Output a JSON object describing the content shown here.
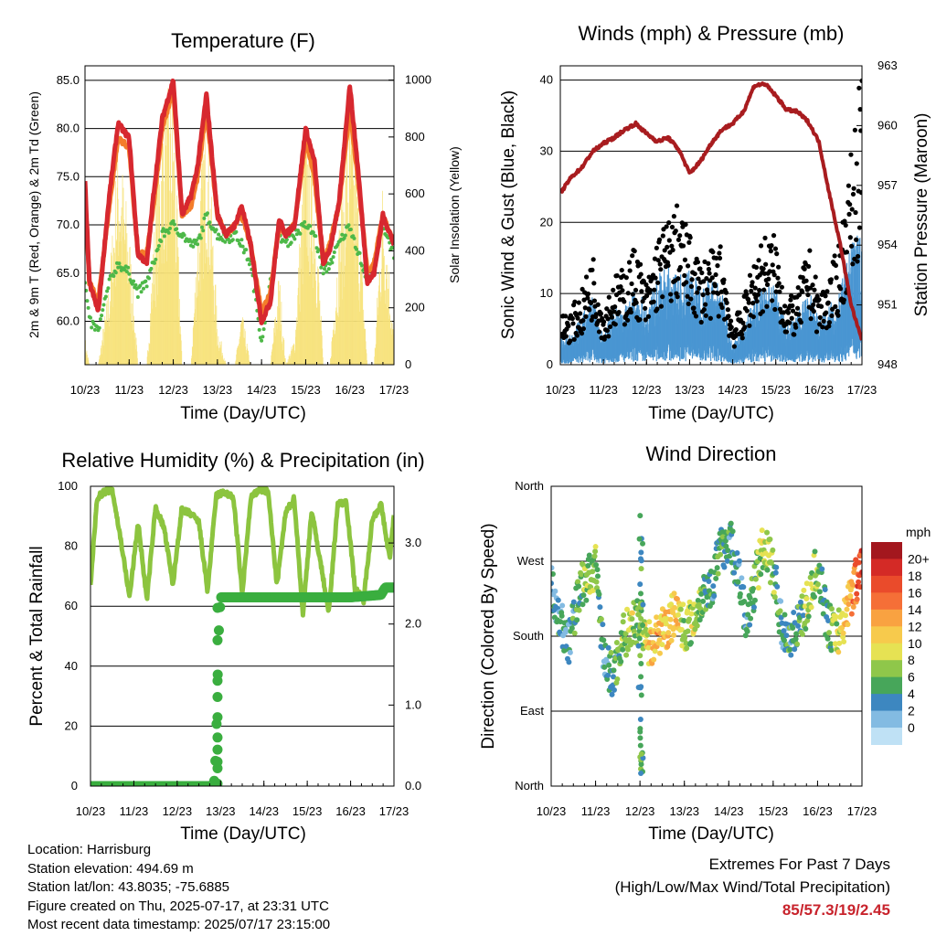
{
  "panels": {
    "temperature": {
      "title": "Temperature (F)",
      "ylabel_left": "2m & 9m T (Red, Orange) & 2m Td (Green)",
      "ylabel_right": "Solar Insolation (Yellow)",
      "xlabel": "Time (Day/UTC)"
    },
    "winds": {
      "title": "Winds (mph) & Pressure (mb)",
      "ylabel_left": "Sonic Wind & Gust (Blue, Black)",
      "ylabel_right": "Station Pressure (Maroon)",
      "xlabel": "Time (Day/UTC)"
    },
    "humidity": {
      "title": "Relative Humidity (%) & Precipitation (in)",
      "ylabel_left": "Percent & Total Rainfall",
      "xlabel": "Time (Day/UTC)"
    },
    "direction": {
      "title": "Wind Direction",
      "ylabel_left": "Direction (Colored By Speed)",
      "xlabel": "Time (Day/UTC)",
      "colorbar_title": "mph",
      "colorbar_labels": [
        "20+",
        "18",
        "16",
        "14",
        "12",
        "10",
        "8",
        "6",
        "4",
        "2",
        "0"
      ],
      "colorbar_colors": [
        "#a3171e",
        "#d42a26",
        "#ea4b2b",
        "#f56f37",
        "#f9a241",
        "#f7ca4c",
        "#e6e253",
        "#8fc74a",
        "#47a65a",
        "#3d87c0",
        "#83bbe2",
        "#bfe1f5"
      ]
    }
  },
  "info": {
    "location": "Location: Harrisburg",
    "elevation": "Station elevation: 494.69 m",
    "latlon": "Station lat/lon: 43.8035; -75.6885",
    "created": "Figure created on Thu, 2025-07-17, at 23:31 UTC",
    "recent": "Most recent data timestamp: 2025/07/17 23:15:00"
  },
  "extremes": {
    "title": "Extremes For Past 7 Days",
    "subtitle": "(High/Low/Max Wind/Total Precipitation)",
    "values": "85/57.3/19/2.45"
  },
  "chart_data": [
    {
      "type": "line",
      "title": "Temperature (F)",
      "xlabel": "Time (Day/UTC)",
      "ylabel": "2m & 9m T (Red, Orange) & 2m Td (Green)",
      "y2label": "Solar Insolation (Yellow)",
      "x_ticks": [
        "10/23",
        "11/23",
        "12/23",
        "13/23",
        "14/23",
        "15/23",
        "16/23",
        "17/23"
      ],
      "ylim": [
        55.5,
        86.5
      ],
      "y_ticks": [
        "60.0",
        "65.0",
        "70.0",
        "75.0",
        "80.0",
        "85.0"
      ],
      "y2lim": [
        0,
        1050
      ],
      "y2_ticks": [
        "0",
        "200",
        "400",
        "600",
        "800",
        "1000"
      ],
      "colors": {
        "temp2m": "#d7282f",
        "temp9m": "#f47d2a",
        "dewpoint": "#4db848",
        "solar": "#f7e27a"
      },
      "x": [
        10.0,
        10.1,
        10.3,
        10.55,
        10.75,
        11.0,
        11.2,
        11.4,
        11.55,
        11.75,
        12.0,
        12.2,
        12.4,
        12.55,
        12.75,
        13.0,
        13.2,
        13.4,
        13.55,
        13.75,
        14.0,
        14.2,
        14.4,
        14.55,
        14.75,
        15.0,
        15.2,
        15.4,
        15.55,
        15.75,
        16.0,
        16.2,
        16.4,
        16.55,
        16.75,
        17.0
      ],
      "series": [
        {
          "name": "temp2m",
          "values": [
            74.5,
            64,
            61,
            73,
            80.5,
            79,
            67,
            66,
            73,
            81,
            85,
            71,
            73,
            76,
            83.5,
            71,
            69,
            70,
            72,
            68,
            60,
            62,
            70.5,
            69,
            70,
            80,
            76.5,
            66,
            67.5,
            72,
            84.5,
            75,
            64,
            65,
            71,
            68
          ]
        },
        {
          "name": "temp9m",
          "values": [
            73,
            64,
            62,
            72,
            79,
            78,
            67,
            67,
            72,
            80,
            84,
            71,
            72,
            75,
            82,
            71,
            69,
            70,
            71,
            68,
            61,
            63,
            70,
            69,
            70,
            79,
            75,
            66,
            68,
            72,
            82,
            74,
            65,
            66,
            71,
            68
          ]
        },
        {
          "name": "dewpoint",
          "values": [
            64,
            60,
            59,
            64,
            66,
            65,
            63,
            64,
            66,
            69,
            70,
            69,
            68,
            68,
            71,
            69,
            68.5,
            69,
            68,
            66,
            58,
            64,
            69,
            68,
            69,
            70,
            69,
            65,
            66,
            68,
            70,
            67,
            64,
            66,
            70,
            67
          ]
        },
        {
          "name": "solar",
          "values": [
            100,
            0,
            0,
            300,
            850,
            500,
            0,
            0,
            450,
            950,
            1000,
            0,
            0,
            500,
            1000,
            150,
            0,
            0,
            200,
            0,
            0,
            0,
            350,
            0,
            100,
            900,
            700,
            0,
            0,
            500,
            950,
            600,
            0,
            0,
            700,
            100
          ]
        }
      ]
    },
    {
      "type": "scatter",
      "title": "Winds (mph) & Pressure (mb)",
      "xlabel": "Time (Day/UTC)",
      "ylabel": "Sonic Wind & Gust (Blue, Black)",
      "y2label": "Station Pressure (Maroon)",
      "x_ticks": [
        "10/23",
        "11/23",
        "12/23",
        "13/23",
        "14/23",
        "15/23",
        "16/23",
        "17/23"
      ],
      "ylim": [
        0,
        42
      ],
      "y_ticks": [
        "0",
        "10",
        "20",
        "30",
        "40"
      ],
      "y2lim": [
        948,
        963
      ],
      "y2_ticks": [
        "948",
        "951",
        "954",
        "957",
        "960",
        "963"
      ],
      "colors": {
        "wind": "#4a96d2",
        "gust": "#000000",
        "pressure": "#a81c1f"
      },
      "x": [
        10.0,
        10.25,
        10.5,
        10.75,
        11.0,
        11.25,
        11.5,
        11.75,
        12.0,
        12.25,
        12.5,
        12.75,
        13.0,
        13.25,
        13.5,
        13.75,
        14.0,
        14.25,
        14.5,
        14.75,
        15.0,
        15.25,
        15.5,
        15.75,
        16.0,
        16.25,
        16.5,
        16.75,
        17.0
      ],
      "series": [
        {
          "name": "wind",
          "values": [
            3,
            3,
            5,
            7,
            3,
            6,
            6,
            8,
            6,
            9,
            10,
            9,
            10,
            8,
            9,
            8,
            2,
            4,
            7,
            8,
            8,
            4,
            5,
            8,
            5,
            6,
            8,
            12,
            14
          ]
        },
        {
          "name": "gust",
          "values": [
            6,
            7,
            9,
            14,
            7,
            11,
            12,
            15,
            10,
            16,
            18,
            20,
            16,
            13,
            14,
            15,
            5,
            8,
            14,
            16,
            16,
            8,
            9,
            15,
            9,
            11,
            16,
            26,
            37
          ]
        },
        {
          "name": "pressure",
          "values": [
            956.6,
            957.4,
            957.9,
            958.7,
            959.1,
            959.4,
            959.8,
            960.1,
            959.6,
            959.2,
            959.4,
            958.8,
            957.6,
            958.2,
            959.1,
            959.8,
            960.1,
            960.7,
            962.0,
            962.1,
            961.5,
            960.8,
            960.7,
            960.2,
            959.2,
            956.5,
            954.0,
            951.0,
            949.2
          ]
        }
      ]
    },
    {
      "type": "line",
      "title": "Relative Humidity (%) & Precipitation (in)",
      "xlabel": "Time (Day/UTC)",
      "ylabel": "Percent & Total Rainfall",
      "x_ticks": [
        "10/23",
        "11/23",
        "12/23",
        "13/23",
        "14/23",
        "15/23",
        "16/23",
        "17/23"
      ],
      "ylim": [
        0,
        100
      ],
      "y_ticks": [
        "0",
        "20",
        "40",
        "60",
        "80",
        "100"
      ],
      "y2lim": [
        0,
        3.7
      ],
      "y2_ticks": [
        "0.0",
        "1.0",
        "2.0",
        "3.0"
      ],
      "colors": {
        "rh": "#8cc43f",
        "precip": "#3aae3f"
      },
      "series": [
        {
          "name": "rh",
          "x": [
            10.0,
            10.15,
            10.3,
            10.5,
            10.7,
            10.9,
            11.1,
            11.3,
            11.5,
            11.7,
            11.9,
            12.1,
            12.3,
            12.5,
            12.7,
            12.9,
            13.1,
            13.3,
            13.5,
            13.7,
            13.9,
            14.1,
            14.3,
            14.5,
            14.7,
            14.9,
            15.1,
            15.3,
            15.5,
            15.7,
            15.9,
            16.1,
            16.3,
            16.5,
            16.7,
            16.9,
            17.0
          ],
          "values": [
            67,
            96,
            98,
            99,
            82,
            63,
            88,
            62,
            93,
            86,
            67,
            92,
            91,
            88,
            65,
            97,
            98,
            96,
            64,
            96,
            99,
            98,
            67,
            91,
            96,
            57,
            92,
            75,
            58,
            94,
            95,
            66,
            62,
            89,
            94,
            76,
            90
          ]
        },
        {
          "name": "precip",
          "x": [
            10.0,
            11.0,
            12.0,
            12.8,
            12.85,
            12.88,
            12.9,
            12.93,
            12.95,
            13.0,
            14.0,
            15.0,
            16.0,
            16.7,
            16.8,
            17.0
          ],
          "values": [
            0.0,
            0.0,
            0.0,
            0.0,
            0.03,
            0.3,
            0.6,
            1.25,
            1.8,
            2.33,
            2.33,
            2.33,
            2.33,
            2.36,
            2.45,
            2.45
          ]
        }
      ]
    },
    {
      "type": "scatter",
      "title": "Wind Direction",
      "xlabel": "Time (Day/UTC)",
      "ylabel": "Direction (Colored By Speed)",
      "x_ticks": [
        "10/23",
        "11/23",
        "12/23",
        "13/23",
        "14/23",
        "15/23",
        "16/23",
        "17/23"
      ],
      "y_ticks": [
        "North",
        "East",
        "South",
        "West",
        "North"
      ],
      "ylim": [
        0,
        360
      ],
      "colorbar": {
        "label": "mph",
        "ticks": [
          "0",
          "2",
          "4",
          "6",
          "8",
          "10",
          "12",
          "14",
          "16",
          "18",
          "20+"
        ]
      },
      "x": [
        10.0,
        10.2,
        10.4,
        10.6,
        10.8,
        11.0,
        11.2,
        11.4,
        11.6,
        11.8,
        12.0,
        12.2,
        12.4,
        12.6,
        12.8,
        13.0,
        13.2,
        13.4,
        13.6,
        13.8,
        14.0,
        14.2,
        14.4,
        14.6,
        14.8,
        15.0,
        15.2,
        15.4,
        15.6,
        15.8,
        16.0,
        16.2,
        16.4,
        16.6,
        16.8,
        17.0
      ],
      "direction": [
        240,
        200,
        170,
        230,
        250,
        260,
        150,
        130,
        180,
        190,
        200,
        170,
        180,
        190,
        210,
        190,
        200,
        230,
        240,
        280,
        300,
        260,
        190,
        250,
        290,
        260,
        190,
        180,
        200,
        220,
        270,
        200,
        180,
        200,
        240,
        260
      ],
      "speed": [
        3,
        4,
        3,
        5,
        7,
        7,
        3,
        4,
        6,
        8,
        6,
        11,
        12,
        10,
        12,
        7,
        8,
        6,
        4,
        5,
        4,
        3,
        4,
        6,
        8,
        7,
        3,
        4,
        5,
        8,
        6,
        4,
        8,
        10,
        14,
        18
      ]
    }
  ]
}
